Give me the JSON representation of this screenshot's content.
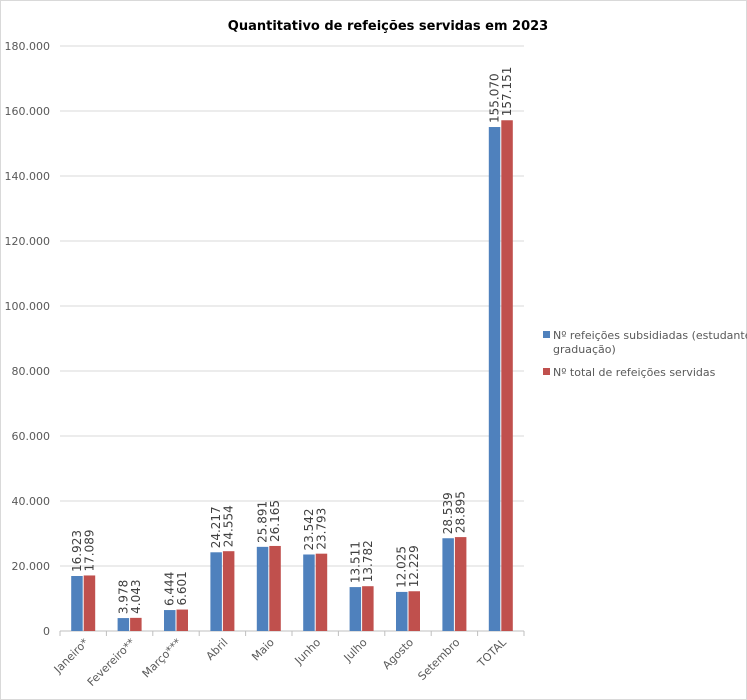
{
  "chart_data": {
    "type": "bar",
    "title": "Quantitativo de refeições servidas em 2023",
    "categories": [
      "Janeiro*",
      "Fevereiro**",
      "Março***",
      "Abril",
      "Maio",
      "Junho",
      "Julho",
      "Agosto",
      "Setembro",
      "TOTAL"
    ],
    "series": [
      {
        "name": "Nº refeições subsidiadas (estudantes graduação)",
        "color": "#4f81bd",
        "values": [
          16923,
          3978,
          6444,
          24217,
          25891,
          23542,
          13511,
          12025,
          28539,
          155070
        ],
        "labels": [
          "16.923",
          "3.978",
          "6.444",
          "24.217",
          "25.891",
          "23.542",
          "13.511",
          "12.025",
          "28.539",
          "155.070"
        ]
      },
      {
        "name": "Nº total de refeições servidas",
        "color": "#c0504d",
        "values": [
          17089,
          4043,
          6601,
          24554,
          26165,
          23793,
          13782,
          12229,
          28895,
          157151
        ],
        "labels": [
          "17.089",
          "4.043",
          "6.601",
          "24.554",
          "26.165",
          "23.793",
          "13.782",
          "12.229",
          "28.895",
          "157.151"
        ]
      }
    ],
    "legend": {
      "position": "right",
      "lines": [
        [
          "Nº refeições subsidiadas (estudantes",
          "graduação)"
        ],
        [
          "Nº total de refeições servidas"
        ]
      ]
    },
    "ylim": [
      0,
      180000
    ],
    "yticks": [
      0,
      20000,
      40000,
      60000,
      80000,
      100000,
      120000,
      140000,
      160000,
      180000
    ],
    "ytick_labels": [
      "0",
      "20.000",
      "40.000",
      "60.000",
      "80.000",
      "100.000",
      "120.000",
      "140.000",
      "160.000",
      "180.000"
    ],
    "grid": true,
    "xlabel": "",
    "ylabel": ""
  }
}
